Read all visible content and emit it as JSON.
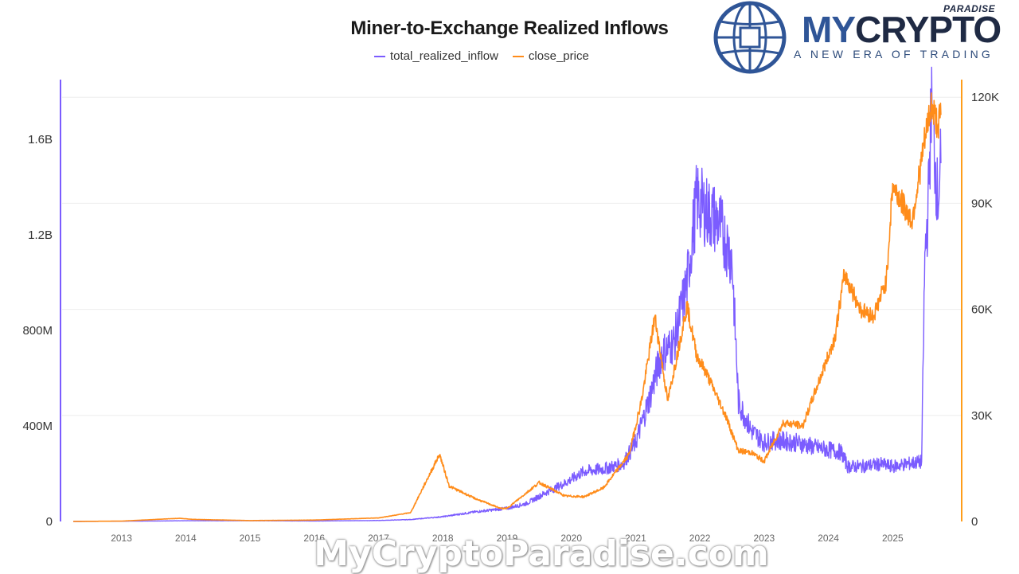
{
  "chart_data": {
    "type": "line",
    "title": "Miner-to-Exchange Realized Inflows",
    "xlabel": "",
    "ylabel": "",
    "grid": true,
    "legend_position": "top-center",
    "x_tick_labels": [
      "2013",
      "2014",
      "2015",
      "2016",
      "2017",
      "2018",
      "2019",
      "2020",
      "2021",
      "2022",
      "2023",
      "2024",
      "2025"
    ],
    "y_left_tick_labels": [
      "0",
      "400M",
      "800M",
      "1.2B",
      "1.6B"
    ],
    "y_left_tick_values": [
      0,
      400000000,
      800000000,
      1200000000,
      1600000000
    ],
    "y_left_range": [
      0,
      1850000000
    ],
    "y_right_tick_labels": [
      "0",
      "30K",
      "60K",
      "90K",
      "120K"
    ],
    "y_right_tick_values": [
      0,
      30000,
      60000,
      90000,
      120000
    ],
    "y_right_range": [
      0,
      125000
    ],
    "series": [
      {
        "name": "total_realized_inflow",
        "axis": "left",
        "color": "#7b5cff",
        "x": [
          2012.25,
          2013.0,
          2014.0,
          2015.0,
          2016.0,
          2017.0,
          2017.5,
          2018.0,
          2018.5,
          2019.0,
          2019.3,
          2019.6,
          2019.9,
          2020.2,
          2020.5,
          2020.8,
          2021.0,
          2021.2,
          2021.4,
          2021.6,
          2021.8,
          2021.95,
          2022.1,
          2022.3,
          2022.5,
          2022.6,
          2022.8,
          2023.0,
          2023.2,
          2023.5,
          2023.8,
          2024.0,
          2024.2,
          2024.3,
          2024.5,
          2024.8,
          2025.0,
          2025.2,
          2025.45,
          2025.5,
          2025.55,
          2025.6,
          2025.65,
          2025.7,
          2025.75
        ],
        "values": [
          0,
          1000000,
          3000000,
          3000000,
          2000000,
          4000000,
          8000000,
          20000000,
          40000000,
          55000000,
          75000000,
          120000000,
          160000000,
          210000000,
          220000000,
          240000000,
          330000000,
          500000000,
          700000000,
          750000000,
          1000000000,
          1350000000,
          1300000000,
          1250000000,
          1100000000,
          500000000,
          380000000,
          330000000,
          340000000,
          330000000,
          310000000,
          300000000,
          290000000,
          230000000,
          230000000,
          240000000,
          230000000,
          240000000,
          250000000,
          1100000000,
          1300000000,
          1750000000,
          1550000000,
          1350000000,
          1500000000
        ]
      },
      {
        "name": "close_price",
        "axis": "right",
        "color": "#ff8c1a",
        "x": [
          2012.25,
          2013.0,
          2013.9,
          2014.1,
          2015.0,
          2016.0,
          2017.0,
          2017.5,
          2017.95,
          2018.1,
          2018.5,
          2018.9,
          2019.0,
          2019.5,
          2019.9,
          2020.2,
          2020.5,
          2020.9,
          2021.1,
          2021.3,
          2021.5,
          2021.8,
          2021.95,
          2022.1,
          2022.4,
          2022.6,
          2022.8,
          2023.0,
          2023.3,
          2023.6,
          2023.9,
          2024.1,
          2024.25,
          2024.5,
          2024.7,
          2024.9,
          2025.0,
          2025.3,
          2025.5,
          2025.6,
          2025.7,
          2025.75
        ],
        "values": [
          10,
          100,
          900,
          600,
          250,
          400,
          1000,
          2500,
          19000,
          10000,
          6500,
          3700,
          3700,
          11000,
          7200,
          7000,
          9500,
          19000,
          35000,
          58000,
          34000,
          61000,
          47000,
          42000,
          30000,
          20000,
          19500,
          17000,
          28000,
          27000,
          42000,
          52000,
          70000,
          60000,
          58000,
          68000,
          95000,
          85000,
          108000,
          118000,
          112000,
          115000
        ]
      }
    ]
  },
  "logo": {
    "word_part1": "MY",
    "word_part2": "CRYPTO",
    "tag": "PARADISE",
    "subtitle": "A NEW ERA OF TRADING",
    "color_blue": "#2f5597",
    "color_dark": "#1f2a44"
  },
  "watermark": "MyCryptoParadise.com"
}
